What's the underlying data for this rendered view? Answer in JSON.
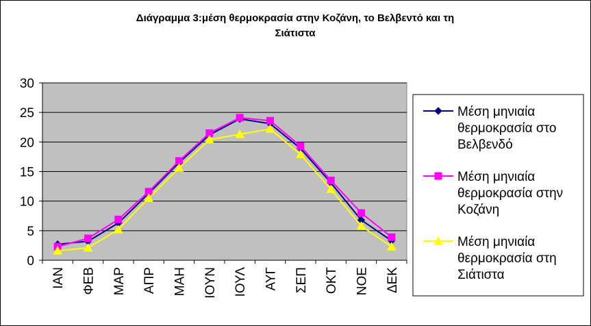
{
  "chart_data": {
    "type": "line",
    "title_lines": [
      "Διάγραμμα  3:μέση θερμοκρασία  στην Κοζάνη, το Βελβεντό και τη",
      "Σιάτιστα"
    ],
    "categories": [
      "ΙΑΝ",
      "ΦΕΒ",
      "ΜΑΡ",
      "ΑΠΡ",
      "ΜΑΗ",
      "ΙΟΥΝ",
      "ΙΟΥΛ",
      "ΑΥΓ",
      "ΣΕΠ",
      "ΟΚΤ",
      "ΝΟΕ",
      "ΔΕΚ"
    ],
    "ylim": [
      0,
      30
    ],
    "yticks": [
      "0",
      "5",
      "10",
      "15",
      "20",
      "25",
      "30"
    ],
    "grid": true,
    "plot_background": "#c0c0c0",
    "legend_position": "right",
    "series": [
      {
        "name_lines": [
          "Μέση μηνιαία",
          "θερμοκρασία στο",
          "Βελβενδό"
        ],
        "color": "#000080",
        "marker": "diamond",
        "values": [
          2.7,
          3.2,
          6.3,
          11.3,
          16.5,
          21.2,
          23.9,
          23.1,
          18.9,
          13.1,
          6.8,
          3.3
        ]
      },
      {
        "name_lines": [
          "Μέση μηνιαία",
          "θερμοκρασία στην",
          "Κοζάνη"
        ],
        "color": "#ff00ff",
        "marker": "square",
        "values": [
          2.3,
          3.7,
          6.9,
          11.6,
          16.8,
          21.5,
          24.1,
          23.6,
          19.3,
          13.5,
          8.0,
          3.9
        ]
      },
      {
        "name_lines": [
          "Μέση μηνιαία",
          "θερμοκρασία στη",
          "Σιάτιστα"
        ],
        "color": "#ffff00",
        "marker": "triangle",
        "values": [
          1.6,
          2.1,
          5.2,
          10.5,
          15.6,
          20.4,
          21.3,
          22.2,
          17.9,
          12.0,
          5.8,
          2.3
        ]
      }
    ]
  }
}
